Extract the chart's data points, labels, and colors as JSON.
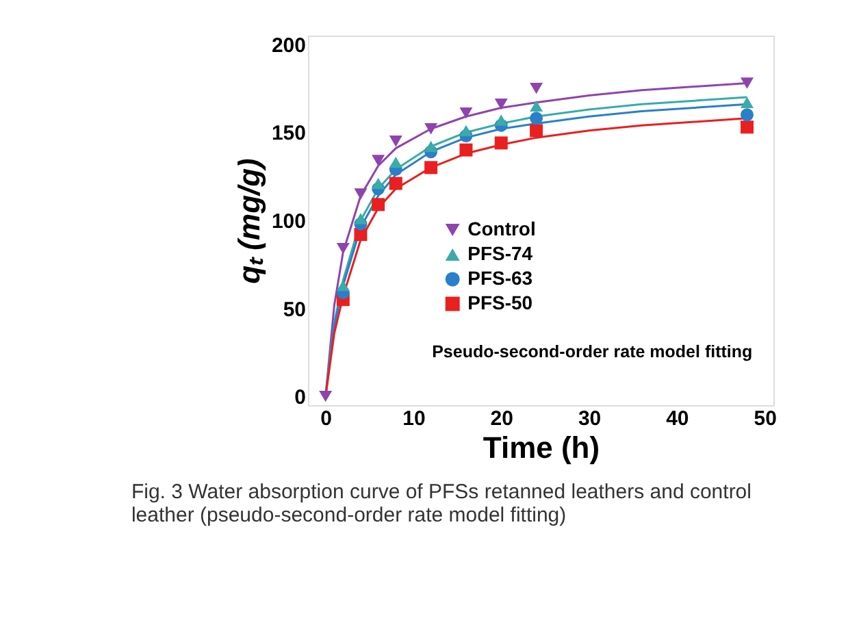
{
  "chart_data": {
    "type": "scatter",
    "xlabel": "Time (h)",
    "ylabel": "qₜ (mg/g)",
    "xlim": [
      -2,
      51
    ],
    "ylim": [
      -5,
      205
    ],
    "xticks": [
      0,
      10,
      20,
      30,
      40,
      50
    ],
    "yticks": [
      0,
      50,
      100,
      150,
      200
    ],
    "grid": false,
    "legend": "left",
    "annotations": [
      "Pseudo-second-order rate model fitting",
      "Fig. 3  Water absorption curve of PFSs retanned leathers and control leather (pseudo-second-order rate model fitting)"
    ],
    "series": [
      {
        "name": "Control",
        "color": "#8e44ad",
        "marker": "triangle-down",
        "x": [
          0,
          2,
          4,
          6,
          8,
          12,
          16,
          20,
          24,
          48
        ],
        "values": [
          0,
          84,
          115,
          134,
          145,
          152,
          161,
          166,
          175,
          178
        ]
      },
      {
        "name": "PFS-74",
        "color": "#3aaba8",
        "marker": "triangle",
        "x": [
          2,
          4,
          6,
          8,
          12,
          16,
          20,
          24,
          48
        ],
        "values": [
          63,
          101,
          121,
          133,
          142,
          151,
          157,
          165,
          167
        ]
      },
      {
        "name": "PFS-63",
        "color": "#2a7fc9",
        "marker": "circle",
        "x": [
          2,
          4,
          6,
          8,
          12,
          16,
          20,
          24,
          48
        ],
        "values": [
          59,
          98,
          118,
          129,
          139,
          148,
          154,
          158,
          160
        ]
      },
      {
        "name": "PFS-50",
        "color": "#e8201f",
        "marker": "square",
        "x": [
          2,
          4,
          6,
          8,
          12,
          16,
          20,
          24,
          48
        ],
        "values": [
          55,
          92,
          109,
          121,
          130,
          140,
          144,
          151,
          153
        ]
      },
      {
        "type": "line",
        "color": "#8e44ad",
        "marker": "none",
        "x": [
          0,
          1,
          2,
          4,
          6,
          8,
          12,
          16,
          20,
          24,
          30,
          36,
          42,
          48
        ],
        "values": [
          0,
          52,
          82,
          114,
          131,
          141,
          152,
          159,
          164,
          167,
          171,
          174,
          176,
          178
        ]
      },
      {
        "type": "line",
        "color": "#3aaba8",
        "marker": "none",
        "x": [
          0,
          1,
          2,
          4,
          6,
          8,
          12,
          16,
          20,
          24,
          30,
          36,
          42,
          48
        ],
        "values": [
          0,
          42,
          66,
          100,
          118,
          129,
          142,
          150,
          155,
          159,
          163,
          166,
          168,
          170
        ]
      },
      {
        "type": "line",
        "color": "#2a7fc9",
        "marker": "none",
        "x": [
          0,
          1,
          2,
          4,
          6,
          8,
          12,
          16,
          20,
          24,
          30,
          36,
          42,
          48
        ],
        "values": [
          0,
          40,
          63,
          96,
          114,
          126,
          139,
          147,
          152,
          155,
          159,
          162,
          164,
          166
        ]
      },
      {
        "type": "line",
        "color": "#e8201f",
        "marker": "none",
        "x": [
          0,
          1,
          2,
          4,
          6,
          8,
          12,
          16,
          20,
          24,
          30,
          36,
          42,
          48
        ],
        "values": [
          0,
          36,
          57,
          89,
          107,
          118,
          130,
          138,
          143,
          147,
          151,
          154,
          156,
          158
        ]
      }
    ]
  }
}
